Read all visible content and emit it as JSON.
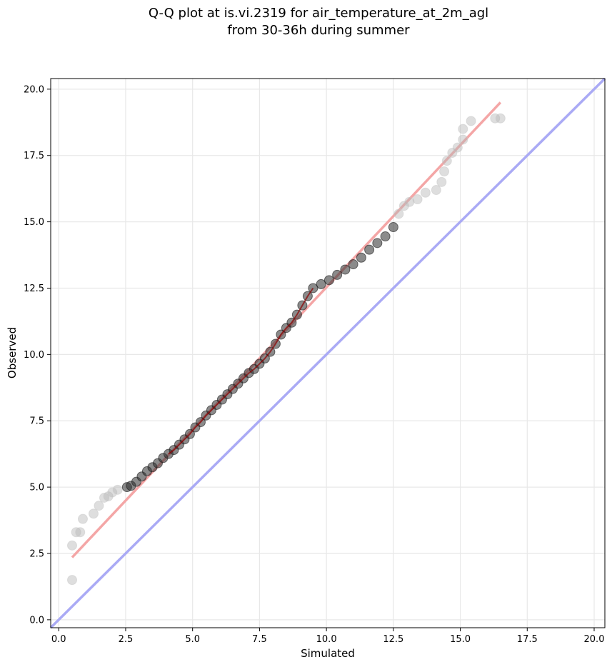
{
  "chart_data": {
    "type": "scatter",
    "title_line1": "Q-Q plot at is.vi.2319 for air_temperature_at_2m_agl",
    "title_line2": "from 30-36h during summer",
    "xlabel": "Simulated",
    "ylabel": "Observed",
    "xlim": [
      -0.3,
      20.4
    ],
    "ylim": [
      -0.3,
      20.4
    ],
    "xticks": [
      0.0,
      2.5,
      5.0,
      7.5,
      10.0,
      12.5,
      15.0,
      17.5,
      20.0
    ],
    "yticks": [
      0.0,
      2.5,
      5.0,
      7.5,
      10.0,
      12.5,
      15.0,
      17.5,
      20.0
    ],
    "grid": true,
    "points": [
      [
        0.5,
        1.5
      ],
      [
        0.5,
        2.8
      ],
      [
        0.65,
        3.3
      ],
      [
        0.8,
        3.3
      ],
      [
        0.9,
        3.8
      ],
      [
        1.3,
        4.0
      ],
      [
        1.5,
        4.3
      ],
      [
        1.7,
        4.6
      ],
      [
        1.85,
        4.65
      ],
      [
        2.0,
        4.8
      ],
      [
        2.2,
        4.9
      ],
      [
        2.55,
        5.0
      ],
      [
        2.7,
        5.05
      ],
      [
        2.9,
        5.2
      ],
      [
        3.1,
        5.4
      ],
      [
        3.3,
        5.6
      ],
      [
        3.5,
        5.75
      ],
      [
        3.7,
        5.9
      ],
      [
        3.9,
        6.1
      ],
      [
        4.1,
        6.25
      ],
      [
        4.3,
        6.4
      ],
      [
        4.5,
        6.6
      ],
      [
        4.7,
        6.8
      ],
      [
        4.9,
        7.0
      ],
      [
        5.1,
        7.25
      ],
      [
        5.3,
        7.45
      ],
      [
        5.5,
        7.7
      ],
      [
        5.7,
        7.9
      ],
      [
        5.9,
        8.1
      ],
      [
        6.1,
        8.3
      ],
      [
        6.3,
        8.5
      ],
      [
        6.5,
        8.7
      ],
      [
        6.7,
        8.9
      ],
      [
        6.9,
        9.1
      ],
      [
        7.1,
        9.3
      ],
      [
        7.3,
        9.45
      ],
      [
        7.5,
        9.65
      ],
      [
        7.7,
        9.85
      ],
      [
        7.9,
        10.1
      ],
      [
        8.1,
        10.4
      ],
      [
        8.3,
        10.75
      ],
      [
        8.5,
        11.0
      ],
      [
        8.7,
        11.2
      ],
      [
        8.9,
        11.5
      ],
      [
        9.1,
        11.85
      ],
      [
        9.3,
        12.2
      ],
      [
        9.5,
        12.5
      ],
      [
        9.8,
        12.65
      ],
      [
        10.1,
        12.8
      ],
      [
        10.4,
        13.0
      ],
      [
        10.7,
        13.2
      ],
      [
        11.0,
        13.4
      ],
      [
        11.3,
        13.65
      ],
      [
        11.6,
        13.95
      ],
      [
        11.9,
        14.2
      ],
      [
        12.2,
        14.45
      ],
      [
        12.5,
        14.8
      ],
      [
        12.7,
        15.3
      ],
      [
        12.9,
        15.6
      ],
      [
        13.1,
        15.75
      ],
      [
        13.4,
        15.85
      ],
      [
        13.7,
        16.1
      ],
      [
        14.1,
        16.2
      ],
      [
        14.3,
        16.5
      ],
      [
        14.4,
        16.9
      ],
      [
        14.5,
        17.3
      ],
      [
        14.7,
        17.6
      ],
      [
        14.9,
        17.8
      ],
      [
        15.1,
        18.1
      ],
      [
        15.1,
        18.5
      ],
      [
        15.4,
        18.8
      ],
      [
        16.3,
        18.9
      ],
      [
        16.5,
        18.9
      ]
    ],
    "fit_line": {
      "x": [
        0.5,
        16.5
      ],
      "y": [
        2.35,
        19.5
      ]
    },
    "reference_line": {
      "x": [
        -0.3,
        20.4
      ],
      "y": [
        -0.3,
        20.4
      ]
    },
    "colors": {
      "points_face": "#6b6b6b",
      "points_dense": "#2b2b2b",
      "fit_line": "#f4a6a6",
      "dense_center_line": "#8b0000",
      "reference_line": "#aaaaf5",
      "grid": "#e8e8e8"
    }
  }
}
